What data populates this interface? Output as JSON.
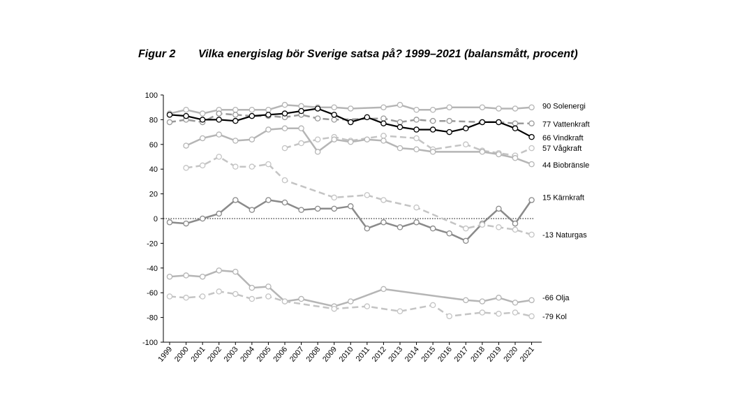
{
  "figure": {
    "label": "Figur 2",
    "title": "Vilka energislag bör Sverige satsa på? 1999–2021 (balansmått, procent)"
  },
  "chart_data": {
    "type": "line",
    "title": "Vilka energislag bör Sverige satsa på? 1999–2021 (balansmått, procent)",
    "xlabel": "",
    "ylabel": "",
    "ylim": [
      -100,
      100
    ],
    "yticks": [
      100,
      80,
      60,
      40,
      20,
      0,
      -20,
      -40,
      -60,
      -80,
      -100
    ],
    "x": [
      1999,
      2000,
      2001,
      2002,
      2003,
      2004,
      2005,
      2006,
      2007,
      2008,
      2009,
      2010,
      2011,
      2012,
      2013,
      2014,
      2015,
      2016,
      2017,
      2018,
      2019,
      2020,
      2021
    ],
    "zero_line": "dotted",
    "series": [
      {
        "name": "Solenergi",
        "end_label": "90",
        "color": "#b5b5b5",
        "style": "solid",
        "width": 2.5,
        "values": [
          85,
          88,
          85,
          88,
          88,
          88,
          88,
          92,
          91,
          90,
          90,
          89,
          null,
          90,
          92,
          88,
          88,
          90,
          null,
          90,
          89,
          89,
          90
        ]
      },
      {
        "name": "Vattenkraft",
        "end_label": "77",
        "color": "#9a9a9a",
        "style": "dashed",
        "width": 2.5,
        "values": [
          78,
          80,
          78,
          85,
          84,
          83,
          83,
          82,
          84,
          81,
          80,
          null,
          null,
          81,
          78,
          80,
          79,
          79,
          null,
          78,
          78,
          77,
          77
        ]
      },
      {
        "name": "Vindkraft",
        "end_label": "66",
        "color": "#000000",
        "style": "solid",
        "width": 2.2,
        "values": [
          84,
          83,
          80,
          80,
          79,
          83,
          84,
          85,
          87,
          89,
          84,
          78,
          82,
          77,
          74,
          72,
          72,
          70,
          73,
          78,
          78,
          73,
          66
        ]
      },
      {
        "name": "Vågkraft",
        "end_label": "57",
        "color": "#c4c4c4",
        "style": "dashed",
        "width": 2.5,
        "values": [
          null,
          null,
          null,
          null,
          null,
          null,
          null,
          57,
          61,
          64,
          66,
          63,
          null,
          67,
          null,
          65,
          56,
          null,
          60,
          55,
          53,
          51,
          57
        ]
      },
      {
        "name": "Biobränsle",
        "end_label": "44",
        "color": "#b5b5b5",
        "style": "solid",
        "width": 2.5,
        "values": [
          null,
          59,
          65,
          68,
          63,
          64,
          72,
          73,
          73,
          54,
          64,
          62,
          64,
          63,
          57,
          56,
          54,
          null,
          null,
          54,
          52,
          49,
          44
        ]
      },
      {
        "name": "Kärnkraft",
        "end_label": "15",
        "color": "#8a8a8a",
        "style": "solid",
        "width": 2.5,
        "values": [
          -3,
          -4,
          0,
          4,
          15,
          7,
          15,
          13,
          7,
          8,
          8,
          10,
          -8,
          -3,
          -7,
          -3,
          -8,
          -12,
          -18,
          -4,
          8,
          -4,
          15
        ]
      },
      {
        "name": "Naturgas",
        "end_label": "-13",
        "color": "#c4c4c4",
        "style": "dashed",
        "width": 2.5,
        "values": [
          null,
          41,
          43,
          50,
          42,
          42,
          44,
          31,
          null,
          null,
          17,
          null,
          19,
          15,
          null,
          9,
          null,
          null,
          -8,
          -5,
          -7,
          -9,
          -13
        ]
      },
      {
        "name": "Olja",
        "end_label": "-66",
        "color": "#b5b5b5",
        "style": "solid",
        "width": 2.5,
        "values": [
          -47,
          -46,
          -47,
          -42,
          -43,
          -56,
          -55,
          -67,
          -65,
          null,
          -71,
          -67,
          null,
          -57,
          null,
          null,
          null,
          null,
          -66,
          -67,
          -64,
          -68,
          -66
        ]
      },
      {
        "name": "Kol",
        "end_label": "-79",
        "color": "#c4c4c4",
        "style": "dashed",
        "width": 2.5,
        "values": [
          -63,
          -64,
          -63,
          -59,
          -61,
          -65,
          -63,
          -67,
          null,
          null,
          -73,
          null,
          -71,
          null,
          -75,
          null,
          -70,
          -79,
          null,
          -76,
          -77,
          -76,
          -79
        ]
      }
    ]
  }
}
